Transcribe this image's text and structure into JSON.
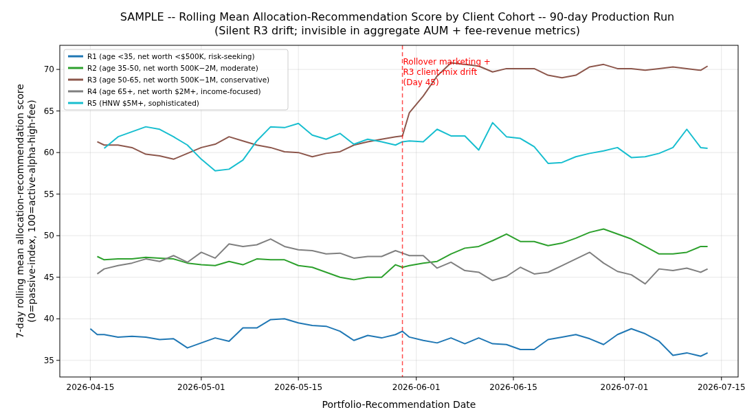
{
  "chart_data": {
    "type": "line",
    "title": "SAMPLE -- Rolling Mean Allocation-Recommendation Score by Client Cohort -- 90-day Production Run",
    "subtitle": "(Silent R3 drift; invisible in aggregate AUM + fee-revenue metrics)",
    "xlabel": "Portfolio-Recommendation Date",
    "ylabel": "7-day rolling mean allocation-recommendation score\n(0=passive-index, 100=active-alpha-high-fee)",
    "x": [
      "2026-04-15",
      "2026-04-16",
      "2026-04-17",
      "2026-04-19",
      "2026-04-21",
      "2026-04-23",
      "2026-04-25",
      "2026-04-27",
      "2026-04-29",
      "2026-05-01",
      "2026-05-03",
      "2026-05-05",
      "2026-05-07",
      "2026-05-09",
      "2026-05-11",
      "2026-05-13",
      "2026-05-15",
      "2026-05-17",
      "2026-05-19",
      "2026-05-21",
      "2026-05-23",
      "2026-05-25",
      "2026-05-27",
      "2026-05-29",
      "2026-05-30",
      "2026-05-31",
      "2026-06-02",
      "2026-06-04",
      "2026-06-06",
      "2026-06-08",
      "2026-06-10",
      "2026-06-12",
      "2026-06-14",
      "2026-06-16",
      "2026-06-18",
      "2026-06-20",
      "2026-06-22",
      "2026-06-24",
      "2026-06-26",
      "2026-06-28",
      "2026-06-30",
      "2026-07-02",
      "2026-07-04",
      "2026-07-06",
      "2026-07-08",
      "2026-07-10",
      "2026-07-12",
      "2026-07-13"
    ],
    "series": [
      {
        "name": "R1 (age <35, net worth <$500K, risk-seeking)",
        "color": "#1f77b4",
        "values": [
          38.8,
          38.1,
          38.1,
          37.8,
          37.9,
          37.8,
          37.5,
          37.6,
          36.5,
          37.1,
          37.7,
          37.3,
          38.9,
          38.9,
          39.9,
          40.0,
          39.5,
          39.2,
          39.1,
          38.5,
          37.4,
          38.0,
          37.7,
          38.1,
          38.5,
          37.8,
          37.4,
          37.1,
          37.7,
          37.0,
          37.7,
          37.0,
          36.9,
          36.3,
          36.3,
          37.5,
          37.8,
          38.1,
          37.6,
          36.9,
          38.1,
          38.8,
          38.2,
          37.3,
          35.6,
          35.9,
          35.5,
          35.9
        ]
      },
      {
        "name": "R2 (age 35-50, net worth 500K−2M, moderate)",
        "color": "#2ca02c",
        "values": [
          null,
          47.5,
          47.1,
          47.2,
          47.2,
          47.4,
          47.3,
          47.2,
          46.7,
          46.5,
          46.4,
          46.9,
          46.5,
          47.2,
          47.1,
          47.1,
          46.4,
          46.2,
          45.6,
          45.0,
          44.7,
          45.0,
          45.0,
          46.5,
          46.2,
          46.4,
          46.7,
          46.9,
          47.8,
          48.5,
          48.7,
          49.4,
          50.2,
          49.3,
          49.3,
          48.8,
          49.1,
          49.7,
          50.4,
          50.8,
          50.2,
          49.6,
          48.7,
          47.8,
          47.8,
          48.0,
          48.7,
          48.7
        ]
      },
      {
        "name": "R3 (age 50-65, net worth 500K−1M, conservative)",
        "color": "#8c564b",
        "values": [
          null,
          61.3,
          60.9,
          60.9,
          60.6,
          59.8,
          59.6,
          59.2,
          59.9,
          60.6,
          61.0,
          61.9,
          61.4,
          60.9,
          60.6,
          60.1,
          60.0,
          59.5,
          59.9,
          60.1,
          60.9,
          61.3,
          61.6,
          61.9,
          62.0,
          64.8,
          66.8,
          69.2,
          70.8,
          70.6,
          70.4,
          69.7,
          70.1,
          70.1,
          70.1,
          69.3,
          69.0,
          69.3,
          70.3,
          70.6,
          70.1,
          70.1,
          69.9,
          70.1,
          70.3,
          70.1,
          69.9,
          70.4
        ]
      },
      {
        "name": "R4 (age 65+, net worth $2M+, income-focused)",
        "color": "#7f7f7f",
        "values": [
          null,
          45.4,
          46.0,
          46.4,
          46.7,
          47.2,
          46.9,
          47.6,
          46.8,
          48.0,
          47.3,
          49.0,
          48.7,
          48.9,
          49.6,
          48.7,
          48.3,
          48.2,
          47.8,
          47.9,
          47.3,
          47.5,
          47.5,
          48.2,
          47.9,
          47.6,
          47.6,
          46.1,
          46.8,
          45.8,
          45.6,
          44.6,
          45.1,
          46.2,
          45.4,
          45.6,
          46.4,
          47.2,
          48.0,
          46.7,
          45.7,
          45.3,
          44.2,
          46.0,
          45.8,
          46.1,
          45.6,
          46.0
        ]
      },
      {
        "name": "R5 (HNW $5M+, sophisticated)",
        "color": "#17becf",
        "values": [
          null,
          null,
          60.5,
          61.9,
          62.5,
          63.1,
          62.8,
          61.9,
          60.9,
          59.2,
          57.8,
          58.0,
          59.1,
          61.4,
          63.1,
          63.0,
          63.5,
          62.1,
          61.6,
          62.3,
          61.0,
          61.6,
          61.3,
          60.9,
          61.3,
          61.4,
          61.3,
          62.8,
          62.0,
          62.0,
          60.3,
          63.6,
          61.9,
          61.7,
          60.7,
          58.7,
          58.8,
          59.5,
          59.9,
          60.2,
          60.6,
          59.4,
          59.5,
          59.9,
          60.6,
          62.8,
          60.6,
          60.5
        ]
      }
    ],
    "xlim": [
      "2026-04-10T14:24",
      "2026-07-17T09:36"
    ],
    "xticks": [
      {
        "value": "2026-04-15",
        "label": "2026-04-15"
      },
      {
        "value": "2026-05-01",
        "label": "2026-05-01"
      },
      {
        "value": "2026-05-15",
        "label": "2026-05-15"
      },
      {
        "value": "2026-06-01",
        "label": "2026-06-01"
      },
      {
        "value": "2026-06-15",
        "label": "2026-06-15"
      },
      {
        "value": "2026-07-01",
        "label": "2026-07-01"
      },
      {
        "value": "2026-07-15",
        "label": "2026-07-15"
      }
    ],
    "ylim": [
      33,
      72.9
    ],
    "yticks": [
      35,
      40,
      45,
      50,
      55,
      60,
      65,
      70
    ],
    "ref_lines": [
      {
        "axis": "x",
        "value": "2026-05-30",
        "label": "Rollover marketing +\nR3 client-mix drift\n(Day 45)",
        "color": "#ff0000",
        "line_style": "dashed"
      }
    ],
    "grid": true,
    "legend": "top left",
    "line_style": "solid",
    "marker": "none"
  }
}
